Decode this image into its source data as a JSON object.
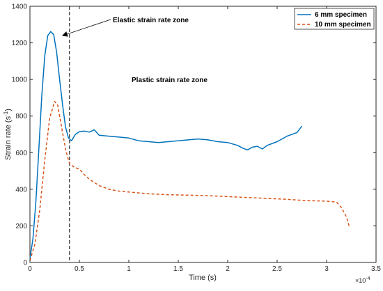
{
  "chart_data": {
    "type": "line",
    "xlabel": "Time (s)",
    "ylabel": "Strain rate (s",
    "ylabel_exponent": "-1",
    "ylabel_close": ")",
    "x_multiplier": "×10",
    "x_multiplier_exponent": "-4",
    "xlim": [
      0,
      3.5
    ],
    "ylim": [
      0,
      1400
    ],
    "x_ticks": [
      0,
      0.5,
      1,
      1.5,
      2,
      2.5,
      3,
      3.5
    ],
    "x_tick_labels": [
      "0",
      "0.5",
      "1",
      "1.5",
      "2",
      "2.5",
      "3",
      "3.5"
    ],
    "y_ticks": [
      0,
      200,
      400,
      600,
      800,
      1000,
      1200,
      1400
    ],
    "y_tick_labels": [
      "0",
      "200",
      "400",
      "600",
      "800",
      "1000",
      "1200",
      "1400"
    ],
    "grid": false,
    "legend_position": "top-right",
    "series": [
      {
        "name": "6 mm specimen",
        "color": "#0072BD",
        "style": "solid",
        "x": [
          0,
          0.03,
          0.06,
          0.09,
          0.12,
          0.15,
          0.18,
          0.21,
          0.24,
          0.27,
          0.3,
          0.33,
          0.36,
          0.39,
          0.42,
          0.46,
          0.5,
          0.55,
          0.6,
          0.65,
          0.7,
          0.8,
          0.9,
          1.0,
          1.1,
          1.2,
          1.3,
          1.4,
          1.5,
          1.6,
          1.7,
          1.8,
          1.9,
          2.0,
          2.1,
          2.15,
          2.2,
          2.25,
          2.3,
          2.35,
          2.4,
          2.5,
          2.6,
          2.7,
          2.75
        ],
        "y": [
          20,
          130,
          330,
          620,
          910,
          1130,
          1240,
          1262,
          1245,
          1150,
          1000,
          860,
          740,
          680,
          665,
          700,
          715,
          718,
          712,
          725,
          695,
          690,
          685,
          680,
          665,
          660,
          655,
          660,
          665,
          670,
          675,
          670,
          660,
          655,
          640,
          625,
          615,
          630,
          635,
          620,
          640,
          660,
          690,
          710,
          745
        ]
      },
      {
        "name": "10 mm specimen",
        "color": "#D95319",
        "style": "dashed",
        "x": [
          0,
          0.05,
          0.1,
          0.15,
          0.2,
          0.25,
          0.28,
          0.32,
          0.36,
          0.4,
          0.45,
          0.5,
          0.55,
          0.6,
          0.7,
          0.8,
          0.9,
          1.0,
          1.2,
          1.4,
          1.6,
          1.8,
          2.0,
          2.2,
          2.4,
          2.6,
          2.8,
          3.0,
          3.1,
          3.15,
          3.2,
          3.23
        ],
        "y": [
          10,
          100,
          290,
          560,
          790,
          880,
          860,
          740,
          620,
          540,
          520,
          510,
          480,
          455,
          420,
          400,
          390,
          385,
          375,
          370,
          368,
          365,
          360,
          355,
          350,
          345,
          338,
          335,
          330,
          300,
          250,
          195
        ]
      }
    ],
    "annotations": [
      {
        "text": "Elastic strain rate zone",
        "arrow_to": [
          0.33,
          1240
        ]
      },
      {
        "text": "Plastic strain rate zone"
      }
    ],
    "reference_line": {
      "x": 0.4,
      "style": "dashed",
      "color": "#000000"
    }
  }
}
